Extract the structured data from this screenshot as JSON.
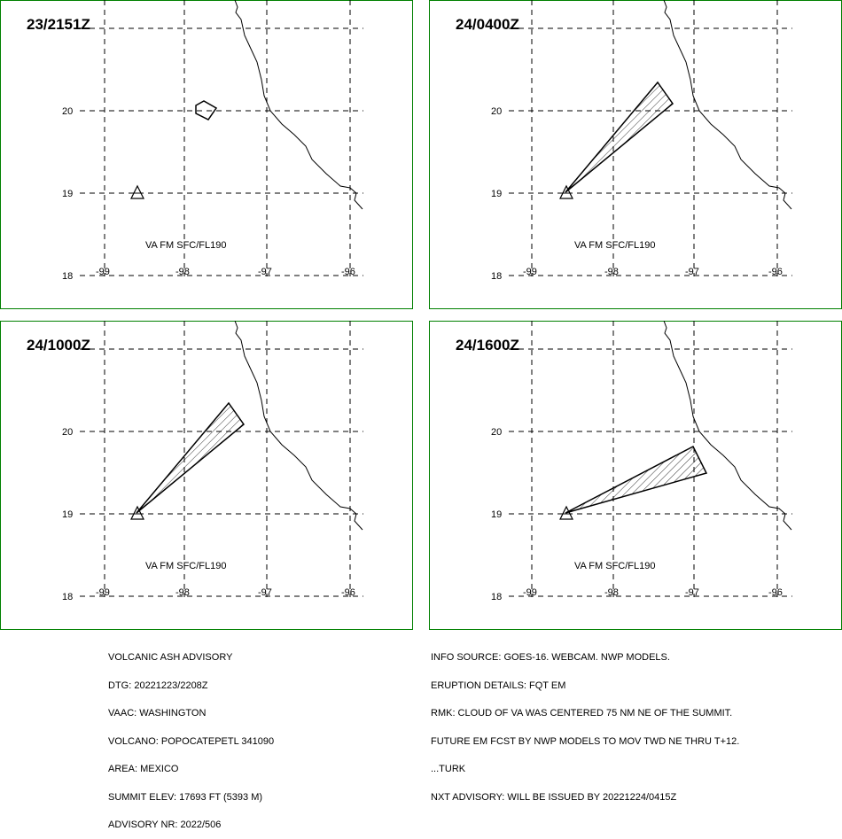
{
  "panels": [
    {
      "time": "23/2151Z",
      "ash_label": "VA FM SFC/FL190",
      "has_ash": true,
      "ash_shape": "small-blob"
    },
    {
      "time": "24/0400Z",
      "ash_label": "VA FM SFC/FL190",
      "has_ash": true,
      "ash_shape": "plume-ne"
    },
    {
      "time": "24/1000Z",
      "ash_label": "VA FM SFC/FL190",
      "has_ash": true,
      "ash_shape": "plume-ne"
    },
    {
      "time": "24/1600Z",
      "ash_label": "VA FM SFC/FL190",
      "has_ash": true,
      "ash_shape": "plume-ene"
    }
  ],
  "map": {
    "lat_labels": [
      "20",
      "19",
      "18"
    ],
    "lon_labels": [
      "-99",
      "-98",
      "-97",
      "-96"
    ],
    "colors": {
      "border": "#008000",
      "grid": "#000000",
      "coast": "#000000"
    }
  },
  "advisory_left": [
    "VOLCANIC ASH ADVISORY",
    "DTG: 20221223/2208Z",
    "VAAC: WASHINGTON",
    "VOLCANO: POPOCATEPETL 341090",
    "AREA: MEXICO",
    "SUMMIT ELEV: 17693 FT (5393 M)",
    "ADVISORY NR: 2022/506"
  ],
  "advisory_right": [
    "INFO SOURCE: GOES-16. WEBCAM. NWP MODELS.",
    "ERUPTION DETAILS: FQT EM",
    "RMK: CLOUD OF VA WAS CENTERED 75 NM NE OF THE SUMMIT.",
    "FUTURE EM FCST BY NWP MODELS TO MOV TWD NE THRU T+12.",
    "...TURK",
    "NXT ADVISORY: WILL BE ISSUED BY 20221224/0415Z"
  ]
}
